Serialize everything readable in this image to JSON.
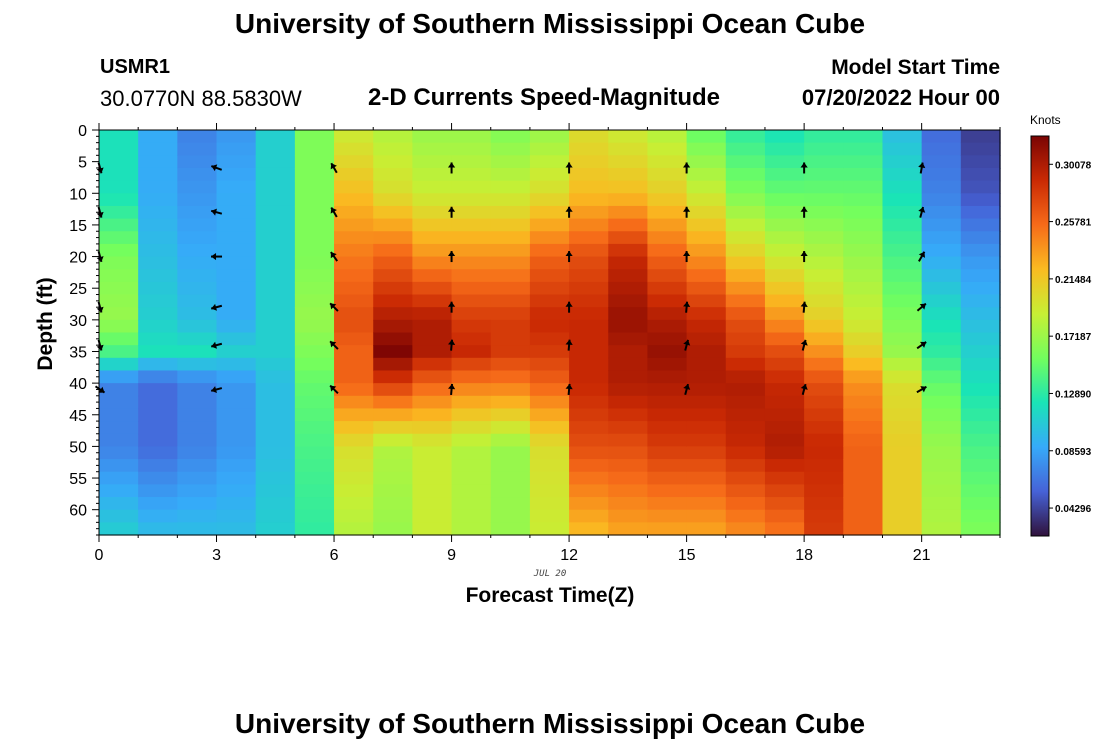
{
  "header": {
    "title": "University of Southern Mississippi Ocean Cube",
    "station": "USMR1",
    "coordinates": "30.0770N  88.5830W",
    "subtitle": "2-D Currents Speed-Magnitude",
    "model_start_label": "Model Start Time",
    "model_start_value": "07/20/2022 Hour 00"
  },
  "footer": {
    "title": "University of Southern Mississippi Ocean Cube"
  },
  "chart_data": {
    "type": "heatmap",
    "xlabel": "Forecast Time(Z)",
    "ylabel": "Depth (ft)",
    "date_label": "JUL 20",
    "xlim": [
      0,
      23
    ],
    "ylim": [
      0,
      64
    ],
    "x_ticks": [
      0,
      3,
      6,
      9,
      12,
      15,
      18,
      21
    ],
    "y_ticks": [
      0,
      5,
      10,
      15,
      20,
      25,
      30,
      35,
      40,
      45,
      50,
      55,
      60
    ],
    "colorbar": {
      "title": "Knots",
      "range": [
        0.022,
        0.322
      ],
      "ticks": [
        0.30078,
        0.25781,
        0.21484,
        0.17187,
        0.1289,
        0.08593,
        0.04296
      ],
      "tick_labels": [
        "0.30078",
        "0.25781",
        "0.21484",
        "0.17187",
        "0.12890",
        "0.08593",
        "0.04296"
      ],
      "colormap": [
        "#30123b",
        "#4662d7",
        "#36aaf9",
        "#1ae4b6",
        "#72fe5e",
        "#c7ef34",
        "#fabb21",
        "#f66b19",
        "#ca2a04",
        "#7a0403"
      ]
    },
    "speed_profile": {
      "hours": [
        0,
        1,
        2,
        3,
        4,
        5,
        6,
        7,
        8,
        9,
        10,
        11,
        12,
        13,
        14,
        15,
        16,
        17,
        18,
        19,
        20,
        21,
        22,
        23
      ],
      "depths_ft": [
        0,
        10,
        20,
        30,
        35,
        40,
        50,
        64
      ],
      "speed_knots": [
        [
          0.12,
          0.09,
          0.07,
          0.08,
          0.11,
          0.16,
          0.19,
          0.18,
          0.17,
          0.17,
          0.16,
          0.17,
          0.2,
          0.19,
          0.18,
          0.15,
          0.13,
          0.12,
          0.13,
          0.13,
          0.1,
          0.06,
          0.04,
          0.04
        ],
        [
          0.12,
          0.09,
          0.08,
          0.09,
          0.11,
          0.16,
          0.22,
          0.2,
          0.19,
          0.19,
          0.19,
          0.2,
          0.22,
          0.22,
          0.21,
          0.19,
          0.16,
          0.15,
          0.15,
          0.15,
          0.12,
          0.07,
          0.05,
          0.05
        ],
        [
          0.16,
          0.1,
          0.09,
          0.09,
          0.11,
          0.16,
          0.25,
          0.26,
          0.24,
          0.24,
          0.24,
          0.26,
          0.27,
          0.29,
          0.26,
          0.24,
          0.21,
          0.19,
          0.18,
          0.17,
          0.14,
          0.09,
          0.08,
          0.07
        ],
        [
          0.17,
          0.11,
          0.1,
          0.09,
          0.11,
          0.17,
          0.27,
          0.3,
          0.3,
          0.28,
          0.28,
          0.29,
          0.29,
          0.31,
          0.3,
          0.29,
          0.27,
          0.24,
          0.21,
          0.19,
          0.16,
          0.12,
          0.1,
          0.09
        ],
        [
          0.14,
          0.12,
          0.12,
          0.11,
          0.11,
          0.16,
          0.26,
          0.32,
          0.3,
          0.29,
          0.28,
          0.28,
          0.29,
          0.3,
          0.31,
          0.3,
          0.28,
          0.27,
          0.24,
          0.21,
          0.17,
          0.13,
          0.11,
          0.1
        ],
        [
          0.07,
          0.06,
          0.07,
          0.08,
          0.1,
          0.15,
          0.26,
          0.28,
          0.26,
          0.25,
          0.25,
          0.26,
          0.29,
          0.3,
          0.3,
          0.3,
          0.3,
          0.29,
          0.27,
          0.24,
          0.2,
          0.15,
          0.12,
          0.12
        ],
        [
          0.07,
          0.06,
          0.07,
          0.08,
          0.1,
          0.14,
          0.2,
          0.18,
          0.19,
          0.18,
          0.17,
          0.2,
          0.27,
          0.27,
          0.28,
          0.28,
          0.29,
          0.3,
          0.29,
          0.26,
          0.21,
          0.17,
          0.14,
          0.14
        ],
        [
          0.11,
          0.1,
          0.1,
          0.1,
          0.11,
          0.13,
          0.18,
          0.17,
          0.19,
          0.18,
          0.17,
          0.19,
          0.22,
          0.23,
          0.23,
          0.23,
          0.24,
          0.25,
          0.28,
          0.26,
          0.21,
          0.18,
          0.16,
          0.14
        ]
      ]
    },
    "current_vectors": {
      "hours": [
        0,
        3,
        6,
        9,
        12,
        15,
        18,
        21
      ],
      "depths_ft": [
        6,
        13,
        20,
        28,
        34,
        41
      ],
      "direction_deg": [
        [
          165,
          290,
          330,
          0,
          0,
          0,
          0,
          10
        ],
        [
          165,
          285,
          330,
          0,
          0,
          0,
          0,
          15
        ],
        [
          165,
          270,
          325,
          0,
          0,
          0,
          0,
          30
        ],
        [
          165,
          255,
          315,
          0,
          0,
          5,
          5,
          50
        ],
        [
          165,
          255,
          315,
          5,
          5,
          15,
          15,
          55
        ],
        [
          125,
          255,
          315,
          5,
          5,
          15,
          15,
          60
        ]
      ]
    }
  }
}
